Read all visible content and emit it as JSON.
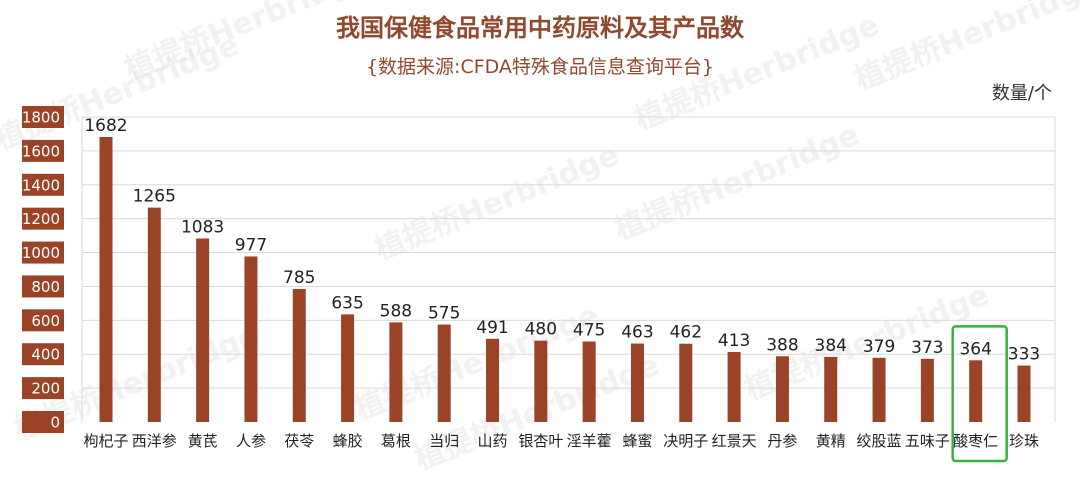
{
  "chart_data": {
    "type": "bar",
    "title": "我国保健食品常用中药原料及其产品数",
    "subtitle": "{数据来源:CFDA特殊食品信息查询平台}",
    "ylabel": "数量/个",
    "xlabel": "",
    "ylim": [
      0,
      1800
    ],
    "yticks": [
      0,
      200,
      400,
      600,
      800,
      1000,
      1200,
      1400,
      1600,
      1800
    ],
    "grid": true,
    "categories": [
      "枸杞子",
      "西洋参",
      "黄芪",
      "人参",
      "茯苓",
      "蜂胶",
      "葛根",
      "当归",
      "山药",
      "银杏叶",
      "淫羊藿",
      "蜂蜜",
      "决明子",
      "红景天",
      "丹参",
      "黄精",
      "绞股蓝",
      "五味子",
      "酸枣仁",
      "珍珠"
    ],
    "values": [
      1682,
      1265,
      1083,
      977,
      785,
      635,
      588,
      575,
      491,
      480,
      475,
      463,
      462,
      413,
      388,
      384,
      379,
      373,
      364,
      333
    ],
    "highlight": "酸枣仁",
    "bar_color": "#9a4327",
    "highlight_color": "#35b23e"
  },
  "watermark": "植提桥Herbridge"
}
